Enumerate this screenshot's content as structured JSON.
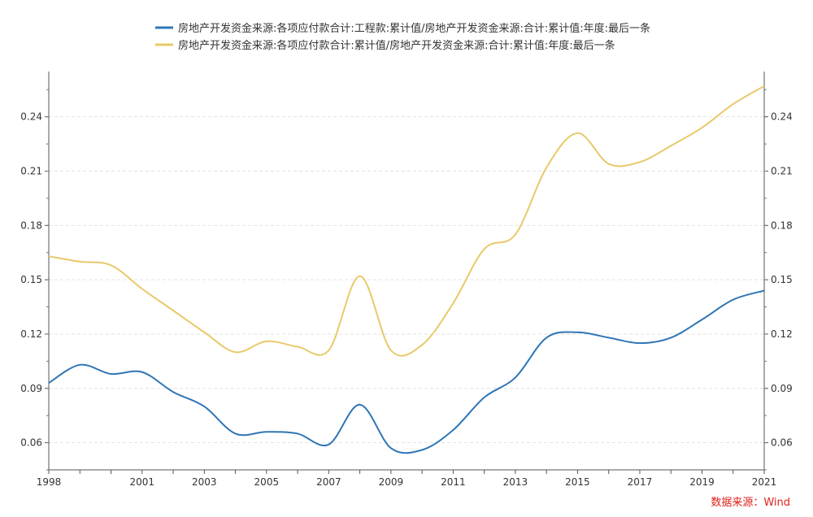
{
  "chart_data": {
    "type": "line",
    "title": "",
    "xlabel": "",
    "ylabel": "",
    "x": [
      1998,
      1999,
      2000,
      2001,
      2002,
      2003,
      2004,
      2005,
      2006,
      2007,
      2008,
      2009,
      2010,
      2011,
      2012,
      2013,
      2014,
      2015,
      2016,
      2017,
      2018,
      2019,
      2020,
      2021
    ],
    "xlim": [
      1998,
      2021
    ],
    "ylim": [
      0.045,
      0.265
    ],
    "x_ticks": [
      "1998",
      "2001",
      "2003",
      "2005",
      "2007",
      "2009",
      "2011",
      "2013",
      "2015",
      "2017",
      "2019",
      "2021"
    ],
    "y_ticks": [
      "0.06",
      "0.09",
      "0.12",
      "0.15",
      "0.18",
      "0.21",
      "0.24"
    ],
    "grid": "horizontal-dashed",
    "legend_position": "top-center",
    "series": [
      {
        "name": "房地产开发资金来源:各项应付款合计:工程款:累计值/房地产开发资金来源:合计:累计值:年度:最后一条",
        "color": "#2e75b6",
        "values": [
          0.093,
          0.103,
          0.098,
          0.099,
          0.088,
          0.08,
          0.065,
          0.066,
          0.065,
          0.059,
          0.081,
          0.057,
          0.056,
          0.067,
          0.085,
          0.096,
          0.118,
          0.121,
          0.118,
          0.115,
          0.118,
          0.128,
          0.139,
          0.144
        ]
      },
      {
        "name": "房地产开发资金来源:各项应付款合计:累计值/房地产开发资金来源:合计:累计值:年度:最后一条",
        "color": "#e8c96a",
        "values": [
          0.163,
          0.16,
          0.158,
          0.145,
          0.133,
          0.121,
          0.11,
          0.116,
          0.113,
          0.111,
          0.152,
          0.111,
          0.114,
          0.137,
          0.167,
          0.175,
          0.212,
          0.231,
          0.214,
          0.215,
          0.224,
          0.234,
          0.247,
          0.257
        ]
      }
    ]
  },
  "source": "数据来源：Wind"
}
